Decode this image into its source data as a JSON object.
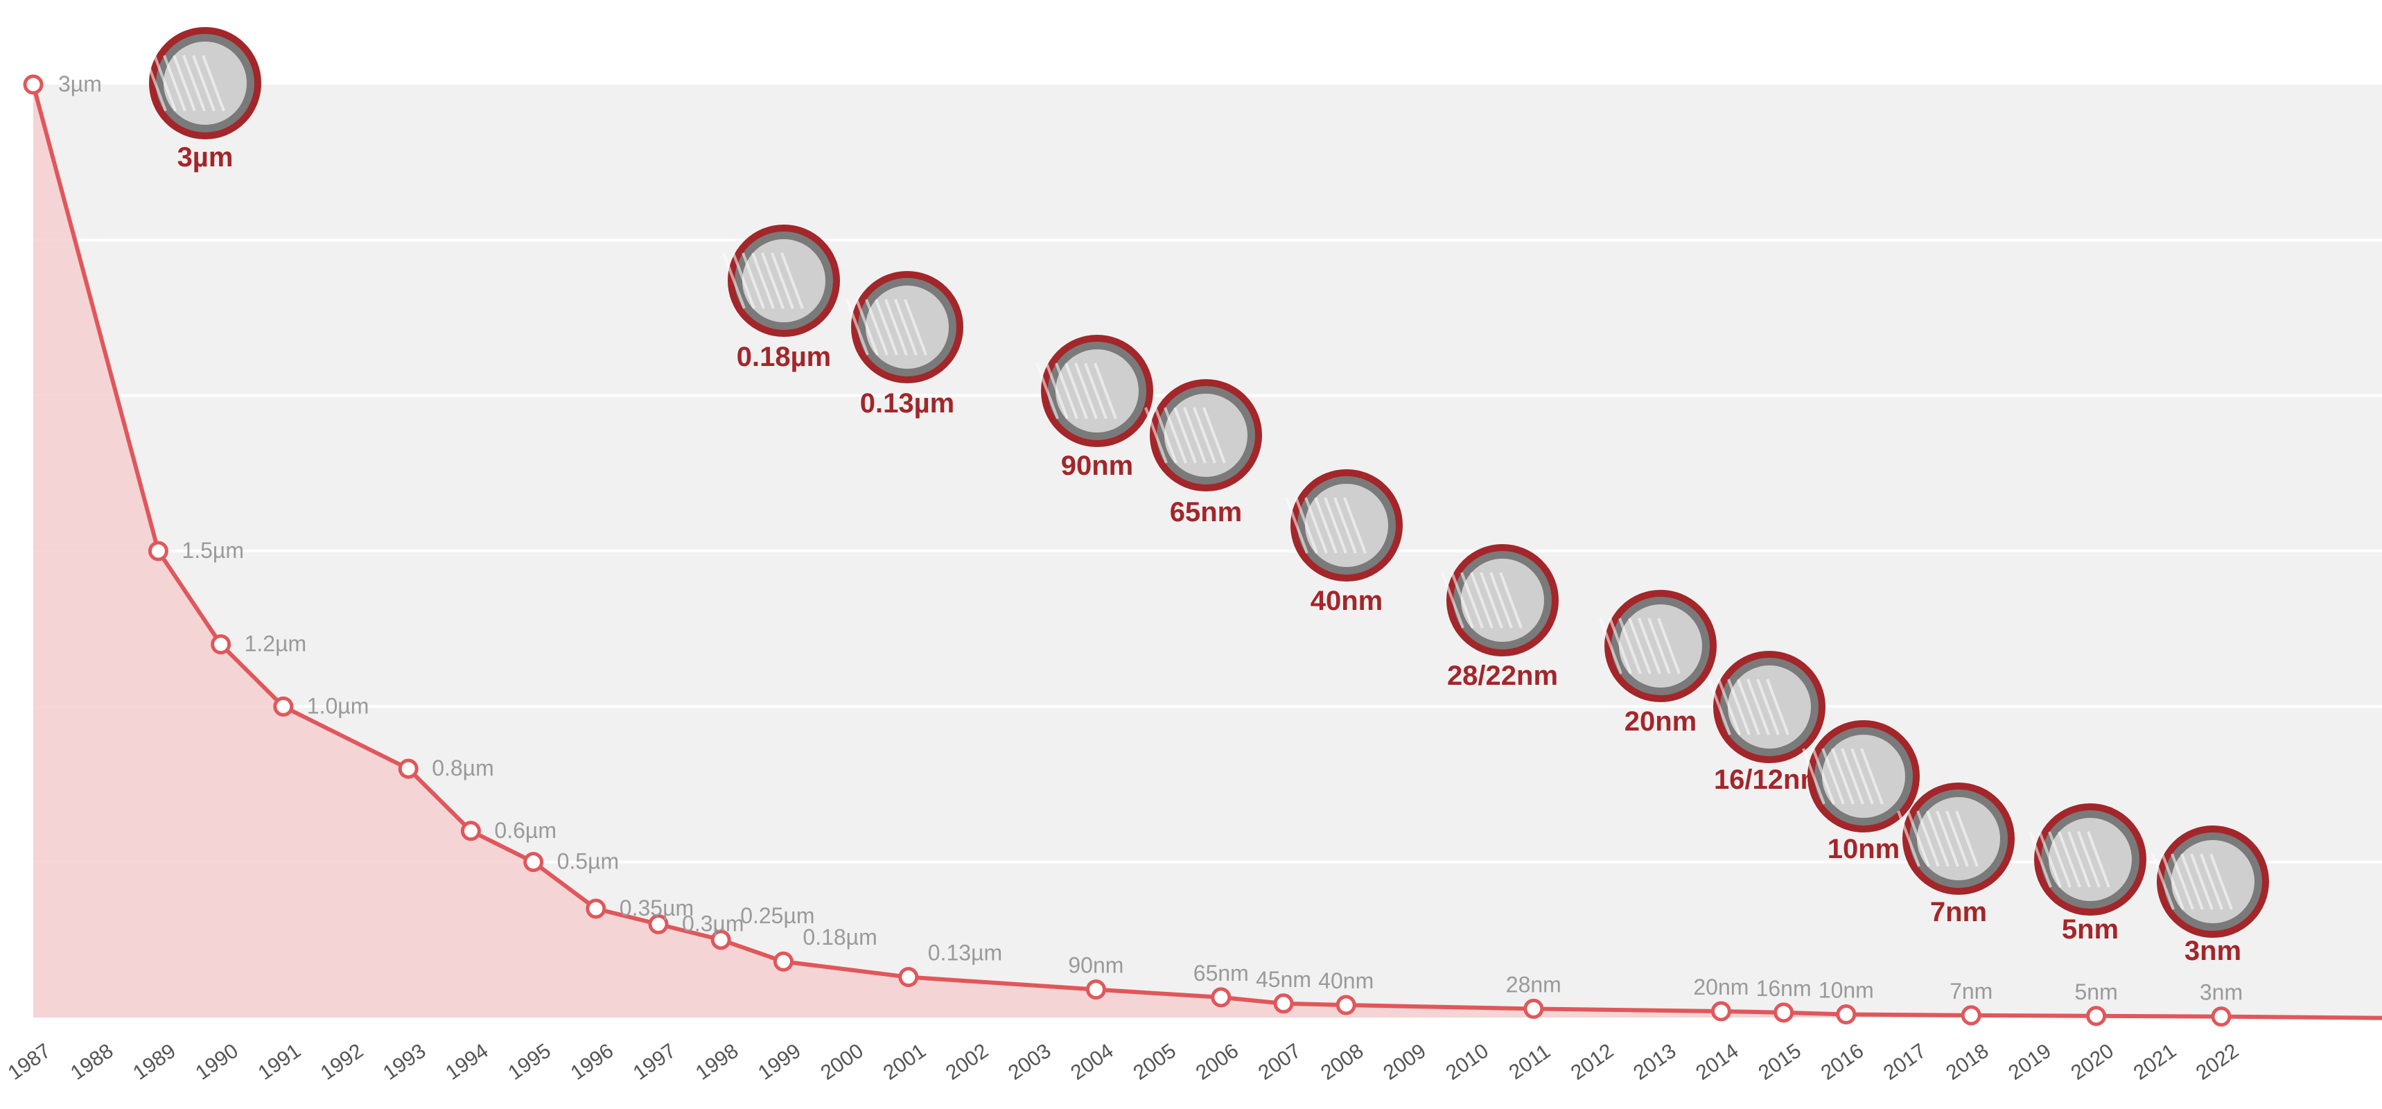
{
  "chart_data": {
    "type": "area",
    "colors": {
      "series": "#e0575b",
      "area": "#f4cfcf",
      "node_ring": "#a3262a",
      "node_label": "#a3262a",
      "value_label": "#9a9a9a",
      "background_band": "#f1f1f1"
    },
    "grid": true,
    "points": [
      {
        "year": "1987",
        "label": "3µm",
        "value_um": 3.0
      },
      {
        "year": "1989",
        "label": "1.5µm",
        "value_um": 1.5
      },
      {
        "year": "1990",
        "label": "1.2µm",
        "value_um": 1.2
      },
      {
        "year": "1991",
        "label": "1.0µm",
        "value_um": 1.0
      },
      {
        "year": "1993",
        "label": "0.8µm",
        "value_um": 0.8
      },
      {
        "year": "1994",
        "label": "0.6µm",
        "value_um": 0.6
      },
      {
        "year": "1995",
        "label": "0.5µm",
        "value_um": 0.5
      },
      {
        "year": "1996",
        "label": "0.35µm",
        "value_um": 0.35
      },
      {
        "year": "1997",
        "label": "0.3µm",
        "value_um": 0.3
      },
      {
        "year": "1998",
        "label": "0.25µm",
        "value_um": 0.25
      },
      {
        "year": "1999",
        "label": "0.18µm",
        "value_um": 0.18
      },
      {
        "year": "2001",
        "label": "0.13µm",
        "value_um": 0.13
      },
      {
        "year": "2004",
        "label": "90nm",
        "value_um": 0.09
      },
      {
        "year": "2006",
        "label": "65nm",
        "value_um": 0.065
      },
      {
        "year": "2007",
        "label": "45nm",
        "value_um": 0.045
      },
      {
        "year": "2008",
        "label": "40nm",
        "value_um": 0.04
      },
      {
        "year": "2011",
        "label": "28nm",
        "value_um": 0.028
      },
      {
        "year": "2014",
        "label": "20nm",
        "value_um": 0.02
      },
      {
        "year": "2015",
        "label": "16nm",
        "value_um": 0.016
      },
      {
        "year": "2016",
        "label": "10nm",
        "value_um": 0.01
      },
      {
        "year": "2018",
        "label": "7nm",
        "value_um": 0.007
      },
      {
        "year": "2020",
        "label": "5nm",
        "value_um": 0.005
      },
      {
        "year": "2022",
        "label": "3nm",
        "value_um": 0.003
      }
    ],
    "x_ticks": [
      "1987",
      "1988",
      "1989",
      "1990",
      "1991",
      "1992",
      "1993",
      "1994",
      "1995",
      "1996",
      "1997",
      "1998",
      "1999",
      "2000",
      "2001",
      "2002",
      "2003",
      "2004",
      "2005",
      "2006",
      "2007",
      "2008",
      "2009",
      "2010",
      "2011",
      "2012",
      "2013",
      "2014",
      "2015",
      "2016",
      "2017",
      "2018",
      "2019",
      "2020",
      "2021",
      "2022"
    ],
    "xlim": [
      "1987",
      "2024"
    ],
    "ylim": [
      0,
      3
    ],
    "nodes": [
      {
        "label": "3µm",
        "icon": "cross-section-image"
      },
      {
        "label": "0.18µm",
        "icon": "cross-section-image"
      },
      {
        "label": "0.13µm",
        "icon": "cross-section-image"
      },
      {
        "label": "90nm",
        "icon": "cross-section-image"
      },
      {
        "label": "65nm",
        "icon": "cross-section-image"
      },
      {
        "label": "40nm",
        "icon": "cross-section-image"
      },
      {
        "label": "28/22nm",
        "icon": "finfet-image"
      },
      {
        "label": "20nm",
        "icon": "finfet-image"
      },
      {
        "label": "16/12nm",
        "icon": "finfet-image"
      },
      {
        "label": "10nm",
        "icon": "finfet-image"
      },
      {
        "label": "7nm",
        "icon": "finfet-image"
      },
      {
        "label": "5nm",
        "icon": "finfet-image"
      },
      {
        "label": "3nm",
        "icon": "finfet-image"
      }
    ]
  }
}
